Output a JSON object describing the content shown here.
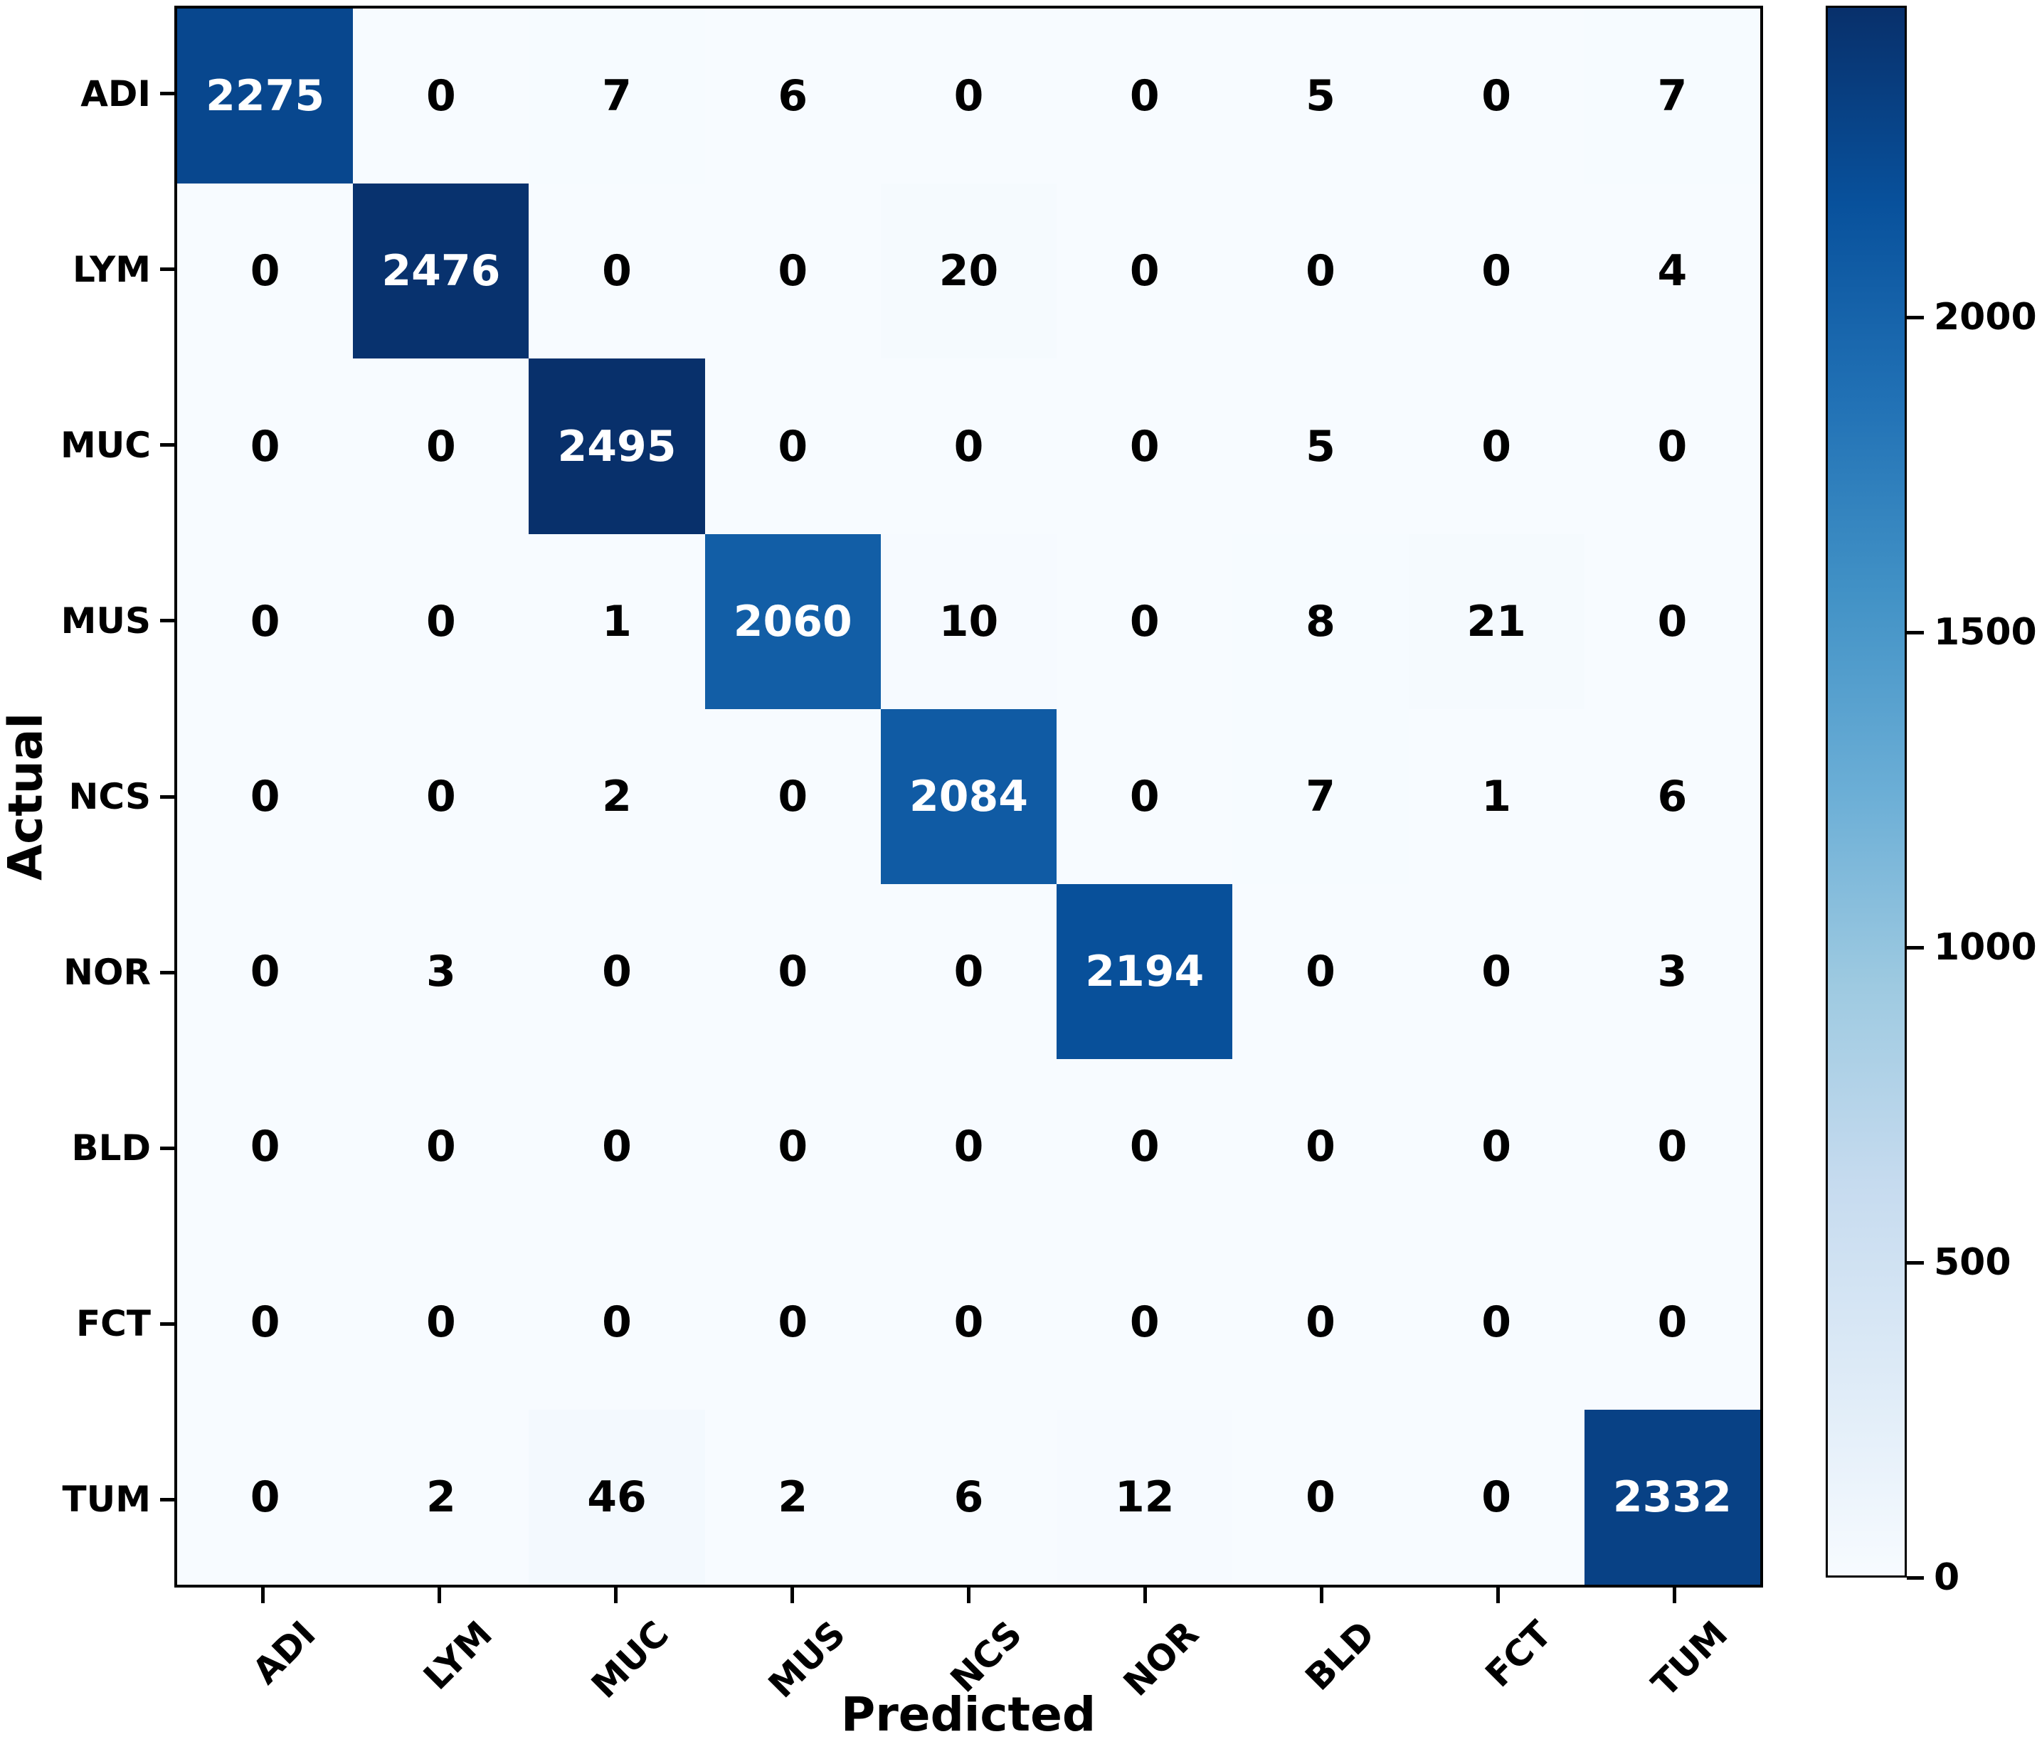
{
  "chart_data": {
    "type": "heatmap",
    "title": "",
    "xlabel": "Predicted",
    "ylabel": "Actual",
    "classes": [
      "ADI",
      "LYM",
      "MUC",
      "MUS",
      "NCS",
      "NOR",
      "BLD",
      "FCT",
      "TUM"
    ],
    "matrix": [
      [
        2275,
        0,
        7,
        6,
        0,
        0,
        5,
        0,
        7
      ],
      [
        0,
        2476,
        0,
        0,
        20,
        0,
        0,
        0,
        4
      ],
      [
        0,
        0,
        2495,
        0,
        0,
        0,
        5,
        0,
        0
      ],
      [
        0,
        0,
        1,
        2060,
        10,
        0,
        8,
        21,
        0
      ],
      [
        0,
        0,
        2,
        0,
        2084,
        0,
        7,
        1,
        6
      ],
      [
        0,
        3,
        0,
        0,
        0,
        2194,
        0,
        0,
        3
      ],
      [
        0,
        0,
        0,
        0,
        0,
        0,
        0,
        0,
        0
      ],
      [
        0,
        0,
        0,
        0,
        0,
        0,
        0,
        0,
        0
      ],
      [
        0,
        2,
        46,
        2,
        6,
        12,
        0,
        0,
        2332
      ]
    ],
    "vmin": 0,
    "vmax": 2495,
    "colorbar_ticks": [
      0,
      500,
      1000,
      1500,
      2000
    ],
    "colormap": "Blues",
    "colormap_anchors": [
      "#f7fbff",
      "#deebf7",
      "#c6dbef",
      "#9ecae1",
      "#6baed6",
      "#4292c6",
      "#2171b5",
      "#08519c",
      "#08306b"
    ],
    "text_color_high": "#ffffff",
    "text_color_low": "#000000",
    "axis_color": "#000000",
    "grid": false,
    "legend_position": "right-colorbar"
  }
}
